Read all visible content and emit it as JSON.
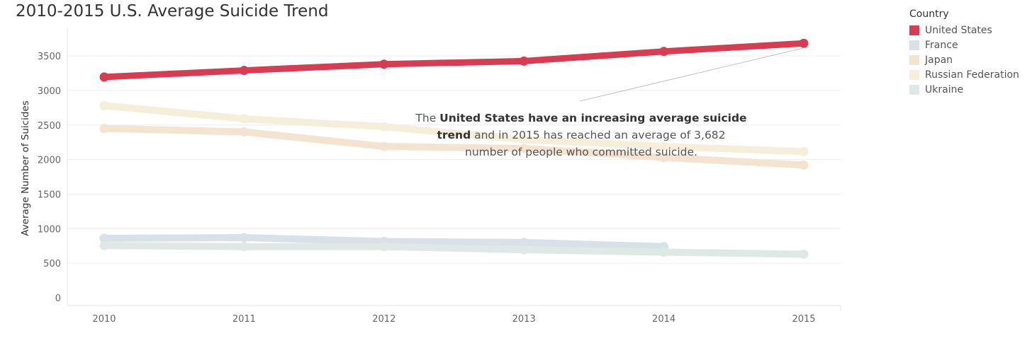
{
  "chart_data": {
    "type": "line",
    "title": "2010-2015 U.S. Average Suicide Trend",
    "xlabel": "",
    "ylabel": "Average Number of Suicides",
    "x": [
      "2010",
      "2011",
      "2012",
      "2013",
      "2014",
      "2015"
    ],
    "yticks": [
      0,
      500,
      1000,
      1500,
      2000,
      2500,
      3000,
      3500
    ],
    "ylim": [
      0,
      3900
    ],
    "grid": true,
    "legend_title": "Country",
    "legend_position": "right",
    "series": [
      {
        "name": "United States",
        "color": "#d63d52",
        "values": [
          3195,
          3290,
          3380,
          3425,
          3565,
          3682
        ]
      },
      {
        "name": "France",
        "color": "#d9e1e8",
        "values": [
          860,
          870,
          815,
          800,
          740,
          null
        ]
      },
      {
        "name": "Japan",
        "color": "#f5e3d1",
        "values": [
          2450,
          2400,
          2190,
          2160,
          2030,
          1920
        ]
      },
      {
        "name": "Russian Federation",
        "color": "#f5eedb",
        "values": [
          2780,
          2590,
          2475,
          2290,
          2190,
          2115
        ]
      },
      {
        "name": "Ukraine",
        "color": "#dfe8e5",
        "values": [
          755,
          740,
          740,
          695,
          660,
          630
        ]
      }
    ],
    "annotation": {
      "lead": "The ",
      "bold1": "United States have an increasing average suicide",
      "bold2": "trend",
      "rest1": " and in 2015  has reached an average of 3,682",
      "rest2": "number of people who committed suicide."
    }
  }
}
